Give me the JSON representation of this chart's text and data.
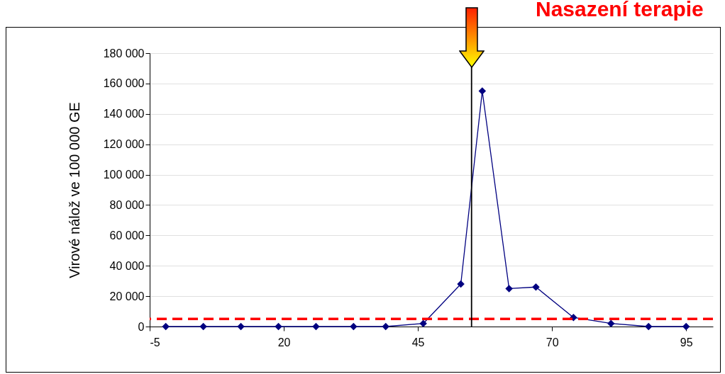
{
  "chart_data": {
    "type": "line",
    "title": "Nasazení terapie",
    "ylabel": "Virové nálož ve 100 000 GE",
    "x": [
      -2,
      5,
      12,
      19,
      26,
      33,
      39,
      46,
      53,
      57,
      62,
      67,
      74,
      81,
      88,
      95
    ],
    "series": [
      {
        "color": "#000080",
        "values": [
          0,
          0,
          0,
          0,
          0,
          0,
          0,
          2000,
          28000,
          155000,
          25000,
          26000,
          6000,
          2000,
          0,
          0
        ]
      }
    ],
    "xlim": [
      -5,
      100
    ],
    "xticks": [
      -5,
      20,
      45,
      70,
      95
    ],
    "ylim": [
      0,
      180000
    ],
    "yticks": [
      0,
      {
        "value": 20000,
        "label": "20 000"
      },
      {
        "value": 40000,
        "label": "40 000"
      },
      {
        "value": 60000,
        "label": "60 000"
      },
      {
        "value": 80000,
        "label": "80 000"
      },
      {
        "value": 100000,
        "label": "100 000"
      },
      {
        "value": 120000,
        "label": "120 000"
      },
      {
        "value": 140000,
        "label": "140 000"
      },
      {
        "value": 160000,
        "label": "160 000"
      },
      {
        "value": 180000,
        "label": "180 000"
      }
    ],
    "ref_lines": [
      {
        "axis": "y",
        "value": 5000,
        "color": "#ff0000",
        "line_style": "dashed"
      },
      {
        "axis": "x",
        "value": 55,
        "color": "#000000",
        "line_style": "solid"
      }
    ],
    "grid": "y",
    "marker": "diamond",
    "line_style": "solid"
  }
}
